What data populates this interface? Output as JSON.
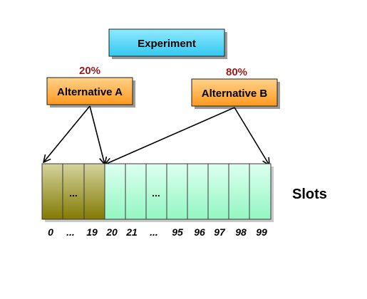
{
  "diagram": {
    "experiment_label": "Experiment",
    "alternative_a": {
      "label": "Alternative A",
      "percent": "20%"
    },
    "alternative_b": {
      "label": "Alternative B",
      "percent": "80%"
    },
    "slots_label": "Slots",
    "slot_ellipsis": "...",
    "slot_numbers": [
      "0",
      "...",
      "19",
      "20",
      "21",
      "...",
      "95",
      "96",
      "97",
      "98",
      "99"
    ]
  },
  "colors": {
    "experiment_fill_top": "#8fe9ff",
    "experiment_fill_bottom": "#33c8f0",
    "alternative_fill_top": "#ffd28a",
    "alternative_fill_bottom": "#ff9a1e",
    "percent_text": "#9b1a1a",
    "slot_a_top": "#d5d49d",
    "slot_a_bottom": "#827a03",
    "slot_b_top": "#ddfff0",
    "slot_b_bottom": "#94f6c2",
    "arrow": "#000000"
  }
}
